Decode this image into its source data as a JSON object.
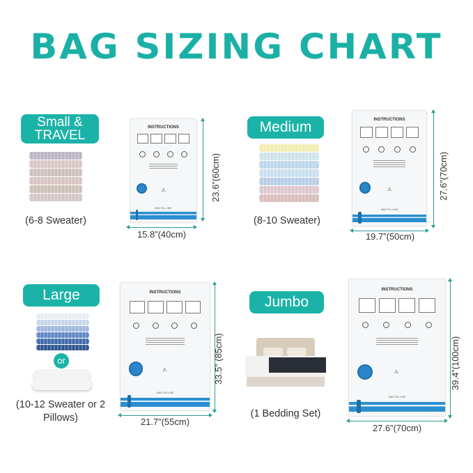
{
  "title": "BAG SIZING CHART",
  "bag": {
    "instructions_title": "INSTRUCTIONS",
    "max_fill": "MAX FILL LINE",
    "warning_icon": "warning-triangle-icon"
  },
  "colors": {
    "accent": "#1bb3a8",
    "valve": "#2a86c8"
  },
  "or_label": "or",
  "sizes": [
    {
      "label": "Small & TRAVEL",
      "capacity": "(6-8 Sweater)",
      "height": "23.6”(60cm)",
      "width": "15.8”(40cm)"
    },
    {
      "label": "Medium",
      "capacity": "(8-10 Sweater)",
      "height": "27.6”(70cm)",
      "width": "19.7”(50cm)"
    },
    {
      "label": "Large",
      "capacity": "(10-12 Sweater or 2 Pillows)",
      "height": "33.5” (85cm)",
      "width": "21.7”(55cm)"
    },
    {
      "label": "Jumbo",
      "capacity": "(1 Bedding Set)",
      "height": "39.4”(100cm)",
      "width": "27.6”(70cm)"
    }
  ]
}
